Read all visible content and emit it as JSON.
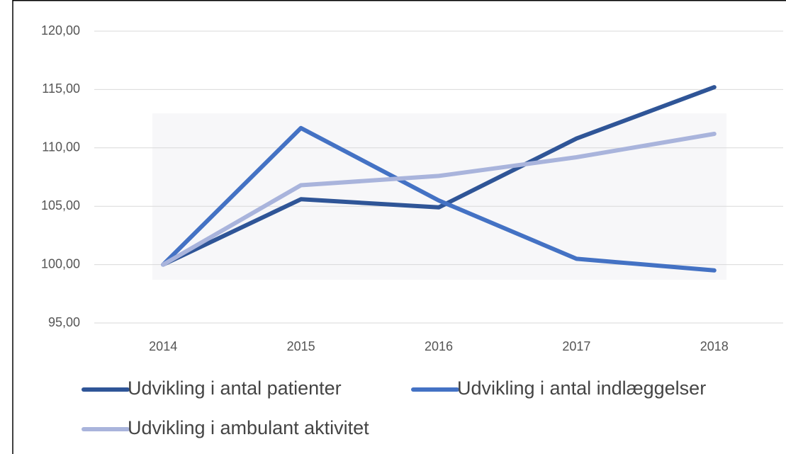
{
  "chart_data": {
    "type": "line",
    "categories": [
      "2014",
      "2015",
      "2016",
      "2017",
      "2018"
    ],
    "series": [
      {
        "name": "Udvikling i antal patienter",
        "color": "#2f5597",
        "values": [
          100.0,
          105.6,
          104.9,
          110.8,
          115.2
        ]
      },
      {
        "name": "Udvikling i antal indlæggelser",
        "color": "#4472c4",
        "values": [
          100.0,
          111.7,
          105.5,
          100.5,
          99.5
        ]
      },
      {
        "name": "Udvikling i ambulant aktivitet",
        "color": "#a9b4dc",
        "values": [
          100.0,
          106.8,
          107.6,
          109.2,
          111.2
        ]
      }
    ],
    "ylim": [
      95,
      120
    ],
    "yticks": [
      {
        "value": 95,
        "label": "95,00"
      },
      {
        "value": 100,
        "label": "100,00"
      },
      {
        "value": 105,
        "label": "105,00"
      },
      {
        "value": 110,
        "label": "110,00"
      },
      {
        "value": 115,
        "label": "115,00"
      },
      {
        "value": 120,
        "label": "120,00"
      }
    ],
    "grid": true
  }
}
